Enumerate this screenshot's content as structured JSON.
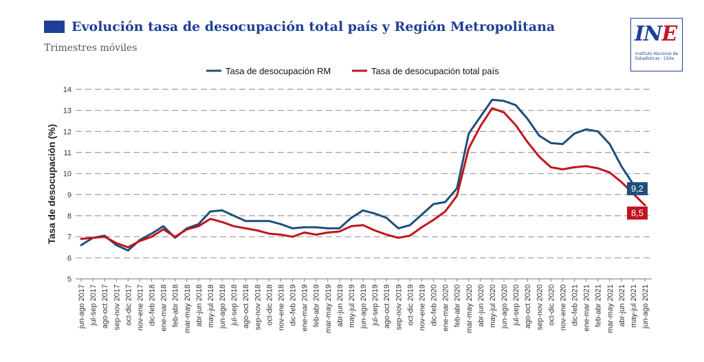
{
  "header": {
    "title": "Evolución tasa de desocupación total país y Región Metropolitana",
    "subtitle": "Trimestres móviles"
  },
  "logo": {
    "mark_part1": "IN",
    "mark_part2": "E",
    "text_line1": "Instituto Nacional de",
    "text_line2": "Estadísticas · Chile"
  },
  "colors": {
    "brand": "#1d3f96",
    "rm": "#1f4e79",
    "pais": "#c0141c",
    "grid": "#9a9a9a"
  },
  "chart_data": {
    "type": "line",
    "title": "Evolución tasa de desocupación total país y Región Metropolitana",
    "subtitle": "Trimestres móviles",
    "xlabel": "",
    "ylabel": "Tasa de desocupación (%)",
    "ylim": [
      5,
      14
    ],
    "yticks": [
      5,
      6,
      7,
      8,
      9,
      10,
      11,
      12,
      13,
      14
    ],
    "grid": "horizontal dashed",
    "legend_placement": "top-center",
    "categories": [
      "jun-ago 2017",
      "jul-sep 2017",
      "ago-oct 2017",
      "sep-nov 2017",
      "oct-dic 2017",
      "nov-ene 2017",
      "dic-feb 2018",
      "ene-mar 2018",
      "feb-abr 2018",
      "mar-may 2018",
      "abr-jun 2018",
      "may-jul 2018",
      "jun-ago 2018",
      "jul-sep 2018",
      "ago-oct 2018",
      "sep-nov 2018",
      "oct-dic 2018",
      "nov-ene 2018",
      "dic-feb 2019",
      "ene-mar 2019",
      "feb-abr 2019",
      "mar-may 2019",
      "abr-jun 2019",
      "may-jul 2019",
      "jun-ago 2019",
      "jul-sep 2019",
      "ago-oct 2019",
      "sep-nov 2019",
      "oct-dic 2019",
      "nov-ene 2019",
      "dic-feb 2020",
      "ene-mar 2020",
      "feb-abr 2020",
      "mar-may 2020",
      "abr-jun 2020",
      "may-jul 2020",
      "jun-ago 2020",
      "jul-sep 2020",
      "ago-oct 2020",
      "sep-nov 2020",
      "oct-dic 2020",
      "nov-ene 2020",
      "dic-feb 2021",
      "ene-mar 2021",
      "feb-abr 2021",
      "mar-may 2021",
      "abr-jun 2021",
      "may-jul 2021",
      "jun-ago 2021"
    ],
    "series": [
      {
        "name": "Tasa de desocupación RM",
        "end_label": "9,2",
        "values": [
          6.6,
          6.95,
          7.05,
          6.6,
          6.35,
          6.85,
          7.15,
          7.5,
          6.95,
          7.4,
          7.6,
          8.2,
          8.25,
          8.0,
          7.75,
          7.75,
          7.75,
          7.6,
          7.4,
          7.45,
          7.45,
          7.4,
          7.4,
          7.9,
          8.25,
          8.1,
          7.9,
          7.4,
          7.55,
          8.05,
          8.55,
          8.65,
          9.3,
          11.9,
          12.7,
          13.5,
          13.45,
          13.25,
          12.6,
          11.8,
          11.45,
          11.4,
          11.9,
          12.1,
          12.0,
          11.4,
          10.35,
          9.5,
          9.2
        ]
      },
      {
        "name": "Tasa de desocupación total país",
        "end_label": "8,5",
        "values": [
          6.9,
          6.95,
          7.0,
          6.7,
          6.5,
          6.8,
          7.0,
          7.35,
          7.0,
          7.35,
          7.5,
          7.85,
          7.7,
          7.5,
          7.4,
          7.3,
          7.15,
          7.1,
          7.0,
          7.2,
          7.1,
          7.2,
          7.25,
          7.5,
          7.55,
          7.3,
          7.1,
          6.95,
          7.05,
          7.45,
          7.8,
          8.2,
          8.95,
          11.2,
          12.25,
          13.1,
          12.9,
          12.3,
          11.5,
          10.8,
          10.3,
          10.2,
          10.3,
          10.35,
          10.25,
          10.05,
          9.6,
          9.05,
          8.5
        ]
      }
    ]
  }
}
